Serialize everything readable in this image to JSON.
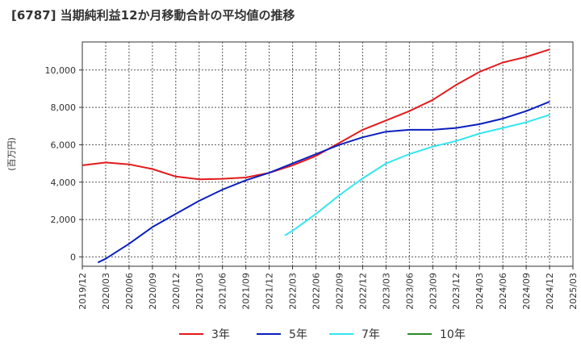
{
  "title": "[6787]  当期純利益12か月移動合計の平均値の推移",
  "chart_data": {
    "type": "line",
    "title": "[6787]  当期純利益12か月移動合計の平均値の推移",
    "ylabel": "(百万円)",
    "xlabel": "",
    "ylim": [
      -500,
      11500
    ],
    "xlim": [
      "2019/12",
      "2025/03"
    ],
    "grid": true,
    "legend_position": "bottom",
    "y_ticks": [
      0,
      2000,
      4000,
      6000,
      8000,
      10000
    ],
    "y_tick_labels": [
      "0",
      "2,000",
      "4,000",
      "6,000",
      "8,000",
      "10,000"
    ],
    "x_ticks": [
      "2019/12",
      "2020/03",
      "2020/06",
      "2020/09",
      "2020/12",
      "2021/03",
      "2021/06",
      "2021/09",
      "2021/12",
      "2022/03",
      "2022/06",
      "2022/09",
      "2022/12",
      "2023/03",
      "2023/06",
      "2023/09",
      "2023/12",
      "2024/03",
      "2024/06",
      "2024/09",
      "2024/12",
      "2025/03"
    ],
    "series": [
      {
        "name": "3年",
        "color": "#e31a1c",
        "x": [
          "2019/12",
          "2020/03",
          "2020/06",
          "2020/09",
          "2020/12",
          "2021/03",
          "2021/06",
          "2021/09",
          "2021/12",
          "2022/03",
          "2022/06",
          "2022/09",
          "2022/12",
          "2023/03",
          "2023/06",
          "2023/09",
          "2023/12",
          "2024/03",
          "2024/06",
          "2024/09",
          "2024/12"
        ],
        "values": [
          4900,
          5050,
          4950,
          4700,
          4300,
          4150,
          4180,
          4250,
          4500,
          4900,
          5400,
          6100,
          6800,
          7300,
          7800,
          8400,
          9200,
          9900,
          10400,
          10700,
          11100
        ]
      },
      {
        "name": "5年",
        "color": "#0a1fbf",
        "x": [
          "2020/02",
          "2020/03",
          "2020/06",
          "2020/09",
          "2020/12",
          "2021/03",
          "2021/06",
          "2021/09",
          "2021/12",
          "2022/03",
          "2022/06",
          "2022/09",
          "2022/12",
          "2023/03",
          "2023/06",
          "2023/09",
          "2023/12",
          "2024/03",
          "2024/06",
          "2024/09",
          "2024/12"
        ],
        "values": [
          -300,
          -100,
          700,
          1600,
          2300,
          3000,
          3600,
          4100,
          4500,
          5000,
          5500,
          6000,
          6400,
          6700,
          6800,
          6800,
          6900,
          7100,
          7400,
          7800,
          8300
        ]
      },
      {
        "name": "7年",
        "color": "#33e6f0",
        "x": [
          "2022/02",
          "2022/03",
          "2022/06",
          "2022/09",
          "2022/12",
          "2023/03",
          "2023/06",
          "2023/09",
          "2023/12",
          "2024/03",
          "2024/06",
          "2024/09",
          "2024/12"
        ],
        "values": [
          1150,
          1400,
          2300,
          3300,
          4200,
          5000,
          5500,
          5900,
          6200,
          6600,
          6900,
          7200,
          7600
        ]
      },
      {
        "name": "10年",
        "color": "#2a8a2a",
        "x": [],
        "values": []
      }
    ]
  }
}
